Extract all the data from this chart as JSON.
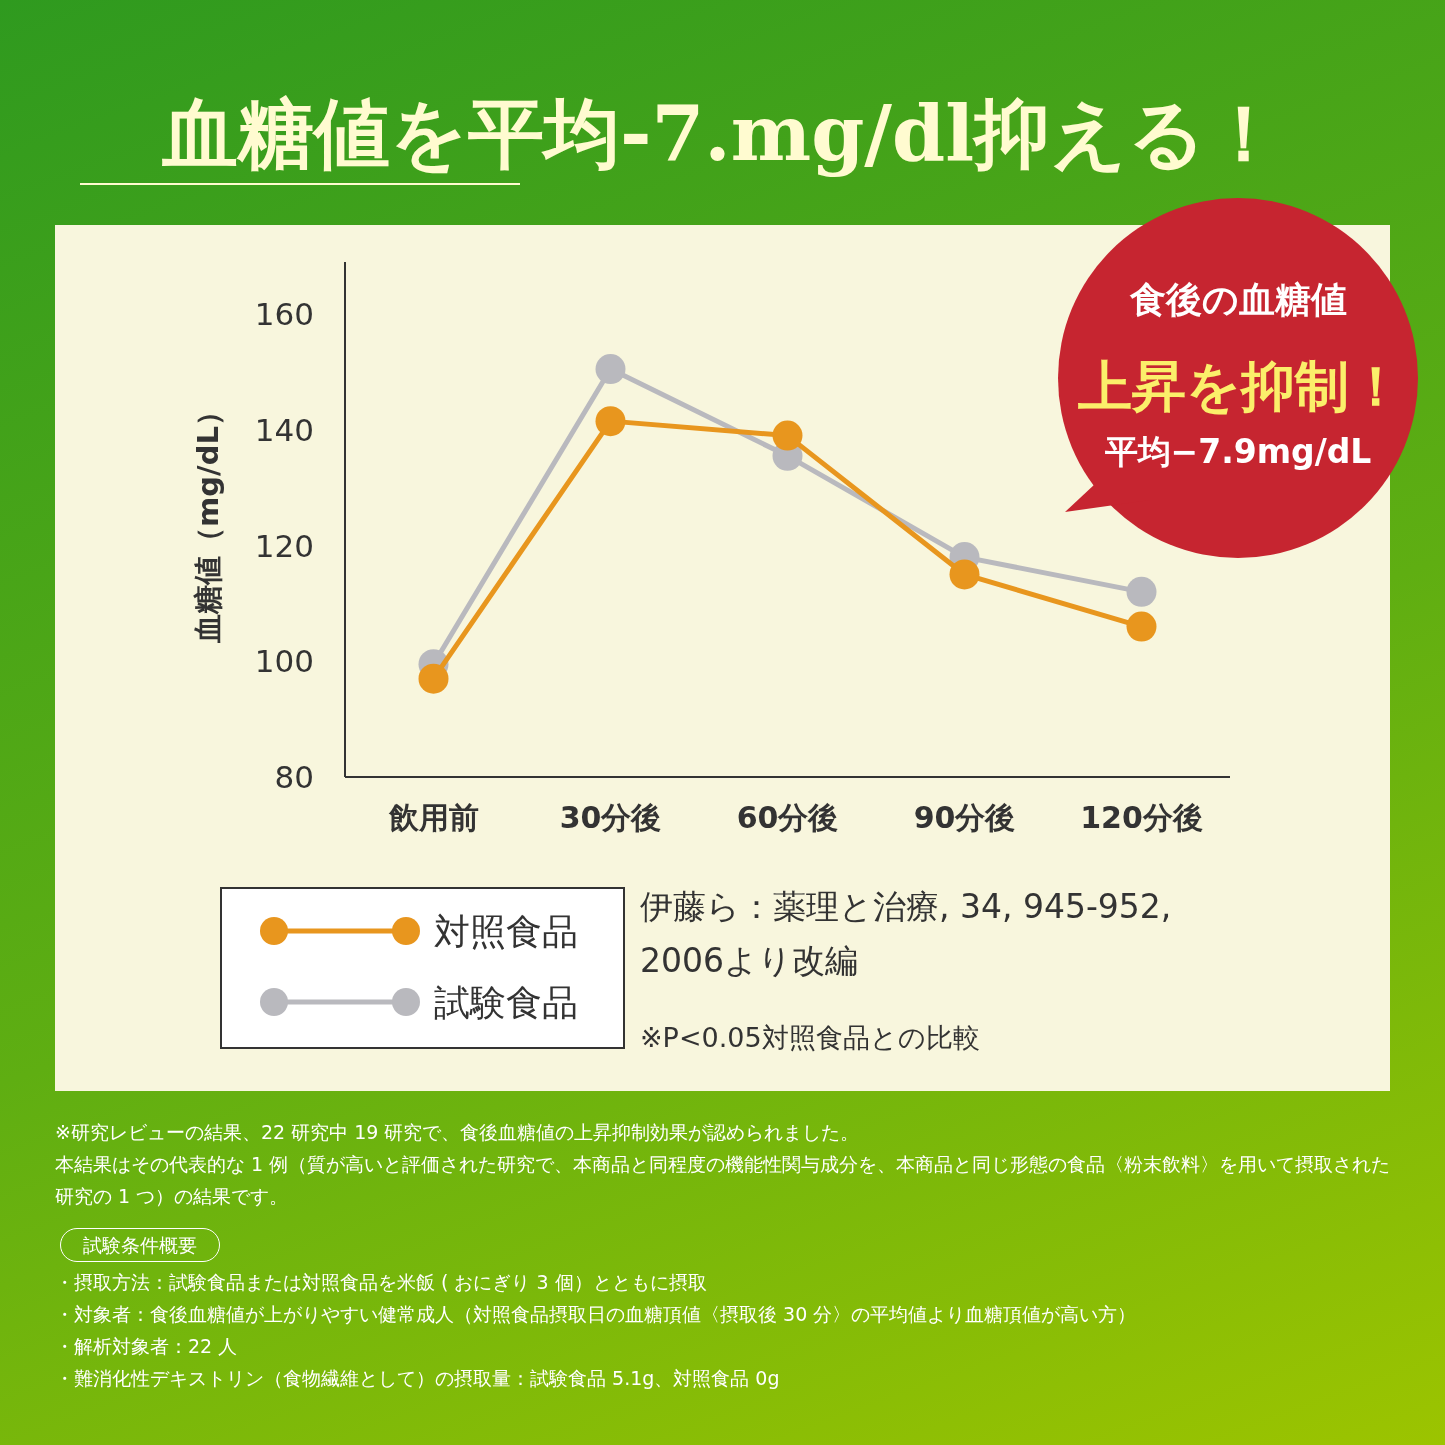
{
  "chart_data": {
    "type": "line",
    "title": "血糖値を平均-7.mg/dl抑える！",
    "ylabel": "血糖値（mg/dL）",
    "categories": [
      "飲用前",
      "30分後",
      "60分後",
      "90分後",
      "120分後"
    ],
    "series": [
      {
        "name": "対照食品",
        "color": "#e8961e",
        "values": [
          97,
          141.5,
          139,
          115,
          106
        ]
      },
      {
        "name": "試験食品",
        "color": "#b9b9be",
        "values": [
          99.5,
          150.5,
          135.5,
          118,
          112
        ]
      }
    ],
    "ylim": [
      80,
      169
    ],
    "yticks": [
      80,
      100,
      120,
      140,
      160
    ],
    "grid": false,
    "legend": "bottom left",
    "marker": "circle",
    "line_style": "solid",
    "annotations": [
      "食後の血糖値",
      "上昇を抑制！",
      "平均−7.9mg/dL",
      "伊藤ら：薬理と治療, 34, 945-952, 2006より改編",
      "※P<0.05対照食品との比較",
      "※研究レビューの結果、22 研究中 19 研究で、食後血糖値の上昇抑制効果が認められました。",
      "本結果はその代表的な 1 例（質が高いと評価された研究で、本商品と同程度の機能性関与成分を、本商品と同じ形態の食品〈粉末飲料〉を用いて摂取された研究の 1 つ）の結果です。",
      "試験条件概要",
      "・摂取方法：試験食品または対照食品を米飯 ( おにぎり 3 個）とともに摂取",
      "・対象者：食後血糖値が上がりやすい健常成人（対照食品摂取日の血糖頂値〈摂取後 30 分〉の平均値より血糖頂値が高い方）",
      "・解析対象者：22 人",
      "・難消化性デキストリン（食物繊維として）の摂取量：試験食品 5.1g、対照食品 0g"
    ]
  }
}
